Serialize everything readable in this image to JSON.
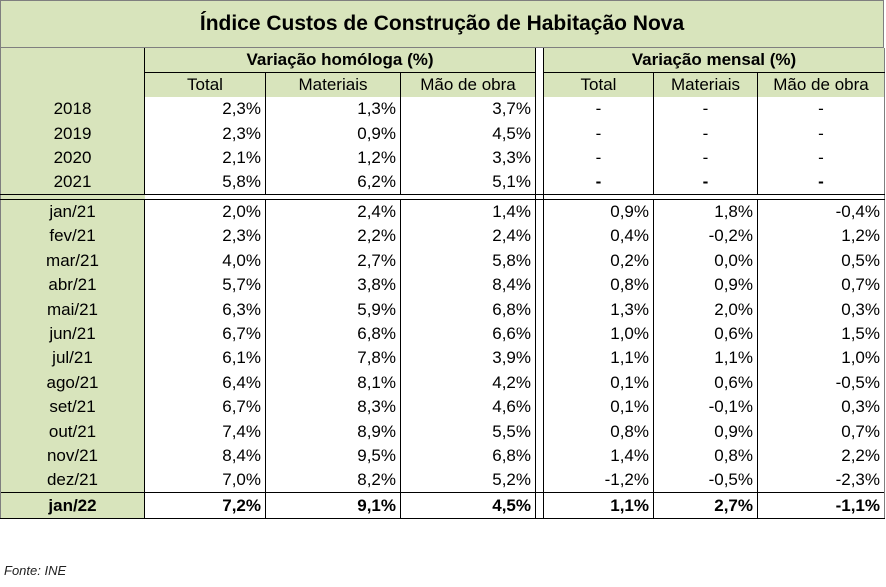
{
  "title": "Índice Custos de Construção de Habitação Nova",
  "group_headers": {
    "homologa": "Variação homóloga (%)",
    "mensal": "Variação mensal (%)"
  },
  "sub_headers": [
    "Total",
    "Materiais",
    "Mão de obra",
    "Total",
    "Materiais",
    "Mão de obra"
  ],
  "annual_rows": [
    {
      "label": "2018",
      "values": [
        "2,3%",
        "1,3%",
        "3,7%",
        "-",
        "-",
        "-"
      ]
    },
    {
      "label": "2019",
      "values": [
        "2,3%",
        "0,9%",
        "4,5%",
        "-",
        "-",
        "-"
      ]
    },
    {
      "label": "2020",
      "values": [
        "2,1%",
        "1,2%",
        "3,3%",
        "-",
        "-",
        "-"
      ]
    },
    {
      "label": "2021",
      "values": [
        "5,8%",
        "6,2%",
        "5,1%",
        "-",
        "-",
        "-"
      ]
    }
  ],
  "monthly_rows": [
    {
      "label": "jan/21",
      "values": [
        "2,0%",
        "2,4%",
        "1,4%",
        "0,9%",
        "1,8%",
        "-0,4%"
      ]
    },
    {
      "label": "fev/21",
      "values": [
        "2,3%",
        "2,2%",
        "2,4%",
        "0,4%",
        "-0,2%",
        "1,2%"
      ]
    },
    {
      "label": "mar/21",
      "values": [
        "4,0%",
        "2,7%",
        "5,8%",
        "0,2%",
        "0,0%",
        "0,5%"
      ]
    },
    {
      "label": "abr/21",
      "values": [
        "5,7%",
        "3,8%",
        "8,4%",
        "0,8%",
        "0,9%",
        "0,7%"
      ]
    },
    {
      "label": "mai/21",
      "values": [
        "6,3%",
        "5,9%",
        "6,8%",
        "1,3%",
        "2,0%",
        "0,3%"
      ]
    },
    {
      "label": "jun/21",
      "values": [
        "6,7%",
        "6,8%",
        "6,6%",
        "1,0%",
        "0,6%",
        "1,5%"
      ]
    },
    {
      "label": "jul/21",
      "values": [
        "6,1%",
        "7,8%",
        "3,9%",
        "1,1%",
        "1,1%",
        "1,0%"
      ]
    },
    {
      "label": "ago/21",
      "values": [
        "6,4%",
        "8,1%",
        "4,2%",
        "0,1%",
        "0,6%",
        "-0,5%"
      ]
    },
    {
      "label": "set/21",
      "values": [
        "6,7%",
        "8,3%",
        "4,6%",
        "0,1%",
        "-0,1%",
        "0,3%"
      ]
    },
    {
      "label": "out/21",
      "values": [
        "7,4%",
        "8,9%",
        "5,5%",
        "0,8%",
        "0,9%",
        "0,7%"
      ]
    },
    {
      "label": "nov/21",
      "values": [
        "8,4%",
        "9,5%",
        "6,8%",
        "1,4%",
        "0,8%",
        "2,2%"
      ]
    },
    {
      "label": "dez/21",
      "values": [
        "7,0%",
        "8,2%",
        "5,2%",
        "-1,2%",
        "-0,5%",
        "-2,3%"
      ]
    }
  ],
  "last_row": {
    "label": "jan/22",
    "values": [
      "7,2%",
      "9,1%",
      "4,5%",
      "1,1%",
      "2,7%",
      "-1,1%"
    ]
  },
  "source": "Fonte: INE",
  "colors": {
    "header_bg": "#d8e4bc",
    "border": "#000000"
  }
}
